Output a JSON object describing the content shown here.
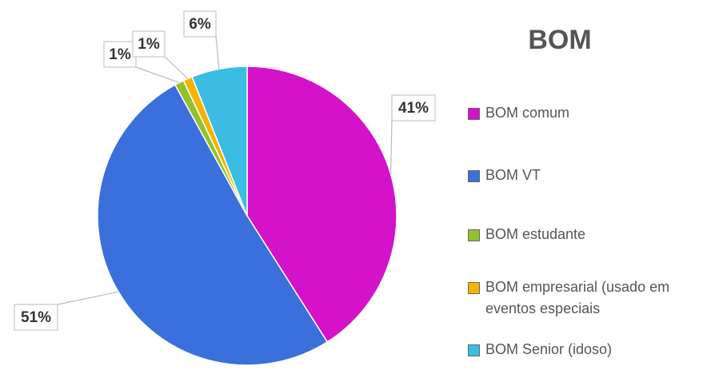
{
  "chart_data": {
    "type": "pie",
    "title": "BOM",
    "categories": [
      "BOM comum",
      "BOM VT",
      "BOM estudante",
      "BOM empresarial (usado em eventos especiais",
      "BOM Senior (idoso)"
    ],
    "values": [
      41,
      51,
      1,
      1,
      6
    ],
    "value_labels": [
      "41%",
      "51%",
      "1%",
      "1%",
      "6%"
    ],
    "colors": [
      "#d412c9",
      "#3a6fdc",
      "#93c02f",
      "#f4b400",
      "#3bbde3"
    ],
    "legend": "right"
  }
}
